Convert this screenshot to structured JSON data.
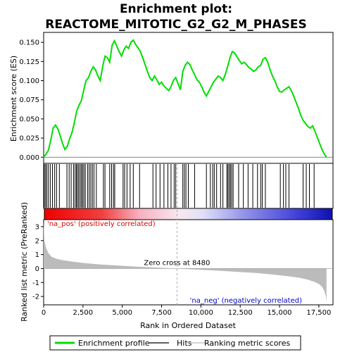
{
  "chart_data": {
    "type": "line",
    "title_line1": "Enrichment plot:",
    "title_line2": "REACTOME_MITOTIC_G2_G2_M_PHASES",
    "upper": {
      "ylabel": "Enrichment score (ES)",
      "ylim": [
        -0.008,
        0.163
      ],
      "yticks": [
        "0.000",
        "0.025",
        "0.050",
        "0.075",
        "0.100",
        "0.125",
        "0.150"
      ],
      "ytick_values": [
        0,
        0.025,
        0.05,
        0.075,
        0.1,
        0.125,
        0.15
      ],
      "line_color": "#00dd00",
      "es_curve": {
        "x": [
          0,
          150,
          300,
          450,
          600,
          750,
          900,
          1050,
          1200,
          1350,
          1500,
          1650,
          1800,
          1950,
          2100,
          2250,
          2400,
          2550,
          2700,
          2850,
          3000,
          3150,
          3300,
          3450,
          3600,
          3750,
          3900,
          4050,
          4200,
          4350,
          4500,
          4650,
          4800,
          4950,
          5100,
          5250,
          5400,
          5550,
          5700,
          5850,
          6000,
          6150,
          6300,
          6450,
          6600,
          6750,
          6900,
          7050,
          7200,
          7350,
          7500,
          7650,
          7800,
          7950,
          8100,
          8250,
          8400,
          8550,
          8700,
          8850,
          9000,
          9150,
          9300,
          9450,
          9600,
          9750,
          9900,
          10050,
          10200,
          10350,
          10500,
          10650,
          10800,
          10950,
          11100,
          11250,
          11400,
          11550,
          11700,
          11850,
          12000,
          12150,
          12300,
          12450,
          12600,
          12750,
          12900,
          13050,
          13200,
          13350,
          13500,
          13650,
          13800,
          13950,
          14100,
          14250,
          14400,
          14550,
          14700,
          14850,
          15000,
          15150,
          15300,
          15450,
          15600,
          15750,
          15900,
          16050,
          16200,
          16350,
          16500,
          16650,
          16800,
          16950,
          17100,
          17250,
          17400,
          17550,
          17700,
          17850,
          17990
        ],
        "y": [
          0.0,
          0.004,
          0.009,
          0.022,
          0.038,
          0.042,
          0.037,
          0.028,
          0.018,
          0.01,
          0.014,
          0.024,
          0.032,
          0.045,
          0.06,
          0.068,
          0.074,
          0.088,
          0.1,
          0.104,
          0.112,
          0.118,
          0.114,
          0.106,
          0.1,
          0.118,
          0.132,
          0.13,
          0.124,
          0.146,
          0.152,
          0.145,
          0.138,
          0.132,
          0.14,
          0.145,
          0.142,
          0.15,
          0.153,
          0.147,
          0.143,
          0.138,
          0.13,
          0.121,
          0.112,
          0.104,
          0.1,
          0.106,
          0.101,
          0.095,
          0.098,
          0.093,
          0.09,
          0.087,
          0.092,
          0.1,
          0.104,
          0.096,
          0.088,
          0.112,
          0.12,
          0.124,
          0.121,
          0.114,
          0.108,
          0.101,
          0.098,
          0.092,
          0.085,
          0.08,
          0.086,
          0.092,
          0.098,
          0.102,
          0.106,
          0.104,
          0.1,
          0.108,
          0.118,
          0.13,
          0.138,
          0.136,
          0.131,
          0.126,
          0.122,
          0.124,
          0.121,
          0.117,
          0.115,
          0.112,
          0.114,
          0.118,
          0.12,
          0.128,
          0.13,
          0.124,
          0.114,
          0.106,
          0.1,
          0.092,
          0.086,
          0.085,
          0.088,
          0.09,
          0.092,
          0.087,
          0.08,
          0.072,
          0.064,
          0.055,
          0.048,
          0.044,
          0.04,
          0.038,
          0.041,
          0.034,
          0.026,
          0.018,
          0.01,
          0.004,
          0.0
        ]
      }
    },
    "hits": [
      40,
      120,
      200,
      300,
      420,
      560,
      700,
      820,
      1000,
      1480,
      1620,
      1750,
      1900,
      2000,
      2080,
      2150,
      2230,
      2320,
      2400,
      2480,
      2560,
      2650,
      2800,
      2900,
      3000,
      3100,
      3200,
      3350,
      3800,
      3900,
      4200,
      4320,
      4440,
      4520,
      5050,
      5150,
      5300,
      5500,
      5700,
      6100,
      6950,
      7150,
      7400,
      7650,
      7900,
      8100,
      8300,
      8400,
      8850,
      8950,
      9050,
      9200,
      9600,
      10350,
      10600,
      10750,
      10850,
      11000,
      11250,
      11400,
      11650,
      11720,
      11800,
      11880,
      11960,
      12050,
      12400,
      12700,
      13000,
      13300,
      13600,
      13800,
      13900,
      14100,
      15050,
      15250,
      15400,
      15600,
      16500,
      16700,
      16900,
      17200
    ],
    "ranked_metric": {
      "ylabel": "Ranked list metric (PreRanked)",
      "ylim": [
        -2.6,
        3.5
      ],
      "yticks": [
        "-2",
        "-1",
        "0",
        "1",
        "2",
        "3"
      ],
      "ytick_values": [
        -2,
        -1,
        0,
        1,
        2,
        3
      ],
      "x": [
        0,
        50,
        150,
        300,
        500,
        800,
        1200,
        1800,
        2500,
        3500,
        4500,
        5500,
        6500,
        7500,
        8480,
        9500,
        10500,
        11500,
        12500,
        13500,
        14500,
        15500,
        16200,
        16800,
        17200,
        17500,
        17700,
        17850,
        17950,
        17990
      ],
      "values": [
        3.4,
        2.0,
        1.5,
        1.1,
        0.85,
        0.7,
        0.6,
        0.5,
        0.4,
        0.3,
        0.23,
        0.16,
        0.1,
        0.05,
        0.0,
        -0.07,
        -0.12,
        -0.18,
        -0.25,
        -0.32,
        -0.42,
        -0.55,
        -0.65,
        -0.8,
        -0.95,
        -1.1,
        -1.3,
        -1.6,
        -2.0,
        -2.4
      ],
      "zero_cross_label": "Zero cross at 8480",
      "zero_cross": 8480,
      "pos_label": "'na_pos' (positively correlated)",
      "neg_label": "'na_neg' (negatively correlated)"
    },
    "xlabel": "Rank in Ordered Dataset",
    "xlim": [
      0,
      18400
    ],
    "xticks": [
      "0",
      "2,500",
      "5,000",
      "7,500",
      "10,000",
      "12,500",
      "15,000",
      "17,500"
    ],
    "xtick_values": [
      0,
      2500,
      5000,
      7500,
      10000,
      12500,
      15000,
      17500
    ],
    "colors": {
      "pos": "#ee1111",
      "neg": "#1111cc",
      "pos_text": "#dd0000",
      "neg_text": "#0000cc",
      "metric_fill": "#bbbbbb"
    },
    "legend": [
      {
        "label": "Enrichment profile",
        "color": "#00dd00",
        "kind": "thick"
      },
      {
        "label": "Hits",
        "color": "#000000",
        "kind": "thin"
      },
      {
        "label": "Ranking metric scores",
        "color": "#bbbbbb",
        "kind": "thin"
      }
    ]
  }
}
